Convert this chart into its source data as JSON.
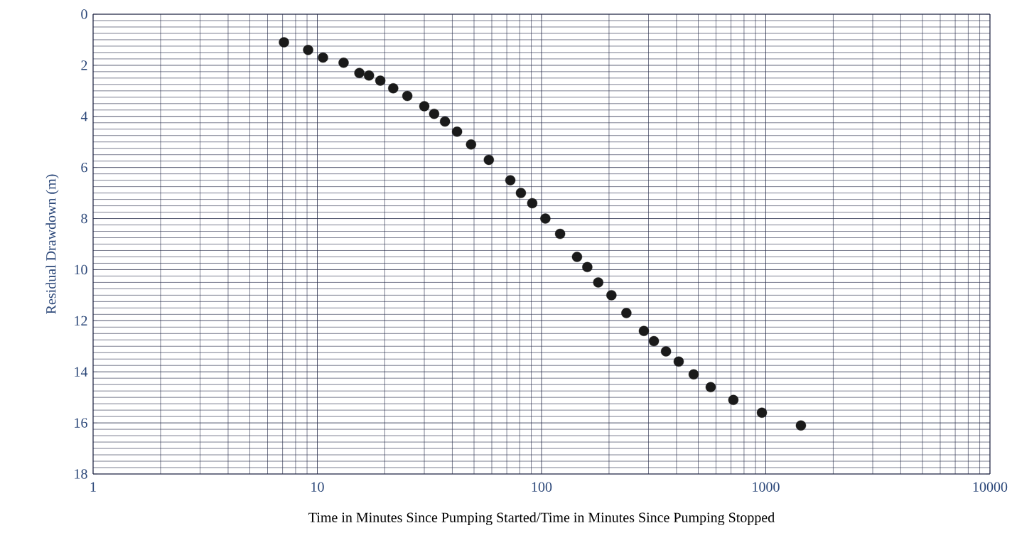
{
  "chart_data": {
    "type": "scatter",
    "xlabel": "Time in Minutes Since Pumping Started/Time in Minutes Since Pumping Stopped",
    "ylabel": "Residual Drawdown (m)",
    "x": [
      7.1,
      9.1,
      10.6,
      13.1,
      15.4,
      17.0,
      19.1,
      21.8,
      25.2,
      30.0,
      33.2,
      37.1,
      42.0,
      48.5,
      58.2,
      72.6,
      80.9,
      90.9,
      104,
      121,
      144,
      160,
      179,
      205,
      239,
      286,
      317,
      359,
      409,
      477,
      568,
      717,
      961,
      1435
    ],
    "values": [
      1.1,
      1.4,
      1.7,
      1.9,
      2.3,
      2.4,
      2.6,
      2.9,
      3.2,
      3.6,
      3.9,
      4.2,
      4.6,
      5.1,
      5.7,
      6.5,
      7.0,
      7.4,
      8.0,
      8.6,
      9.5,
      9.9,
      10.5,
      11.0,
      11.7,
      12.4,
      12.8,
      13.2,
      13.6,
      14.1,
      14.6,
      15.1,
      15.6,
      16.1
    ],
    "color": "#1a1a1a",
    "xlim": [
      1,
      10000
    ],
    "ylim": [
      18,
      0
    ],
    "xticks": [
      1,
      10,
      100,
      1000,
      10000
    ],
    "yticks": [
      0,
      2,
      4,
      6,
      8,
      10,
      12,
      14,
      16,
      18
    ],
    "log": "x",
    "grid": true,
    "marker": "circle"
  }
}
